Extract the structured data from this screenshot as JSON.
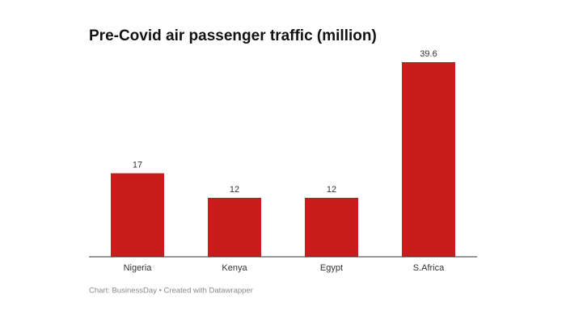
{
  "chart_data": {
    "type": "bar",
    "title": "Pre-Covid air passenger traffic (million)",
    "categories": [
      "Nigeria",
      "Kenya",
      "Egypt",
      "S.Africa"
    ],
    "values": [
      17,
      12,
      12,
      39.6
    ],
    "color": "#c71e1d",
    "source": "Chart: BusinessDay • Created with Datawrapper"
  }
}
